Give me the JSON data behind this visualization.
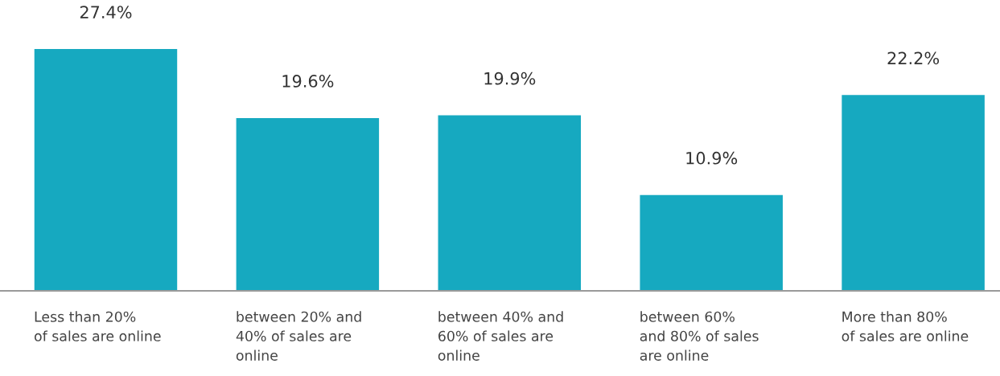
{
  "chart_data": {
    "type": "bar",
    "categories": [
      "Less than 20%\nof sales are online",
      "between 20% and\n40% of sales are\nonline",
      "between 40% and\n60% of sales are\nonline",
      "between 60%\nand 80% of sales\nare online",
      "More than 80%\nof sales are online"
    ],
    "values": [
      27.4,
      19.6,
      19.9,
      10.9,
      22.2
    ],
    "value_labels": [
      "27.4%",
      "19.6%",
      "19.9%",
      "10.9%",
      "22.2%"
    ],
    "color": "#16a9c0"
  }
}
